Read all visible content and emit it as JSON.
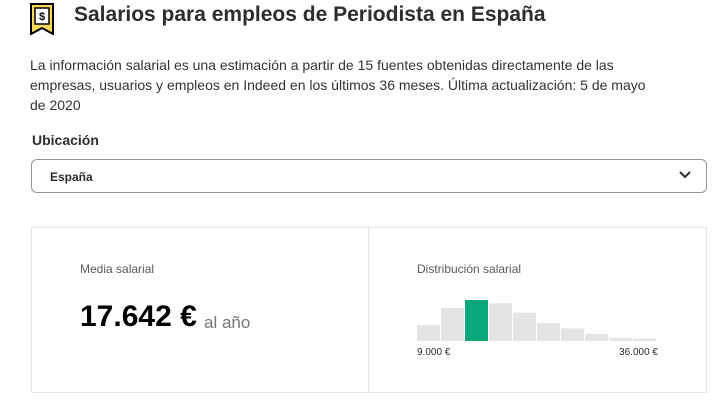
{
  "header": {
    "title": "Salarios para empleos de Periodista en España"
  },
  "description": "La información salarial es una estimación a partir de 15 fuentes obtenidas directamente de las empresas, usuarios y empleos en Indeed en los últimos 36 meses. Última actualización: 5 de mayo de 2020",
  "location": {
    "label": "Ubicación",
    "selected": "España"
  },
  "summary": {
    "average_label": "Media salarial",
    "average_value": "17.642 €",
    "period": "al año",
    "distribution": {
      "title": "Distribución salarial",
      "values": [
        39,
        81,
        100,
        92,
        69,
        44,
        31,
        17,
        8,
        6
      ],
      "bar_color": "#e4e4e4",
      "highlight_color": "#0aa67b",
      "highlight_index": 2,
      "min_label": "9.000 €",
      "max_label": "36.000 €"
    }
  }
}
